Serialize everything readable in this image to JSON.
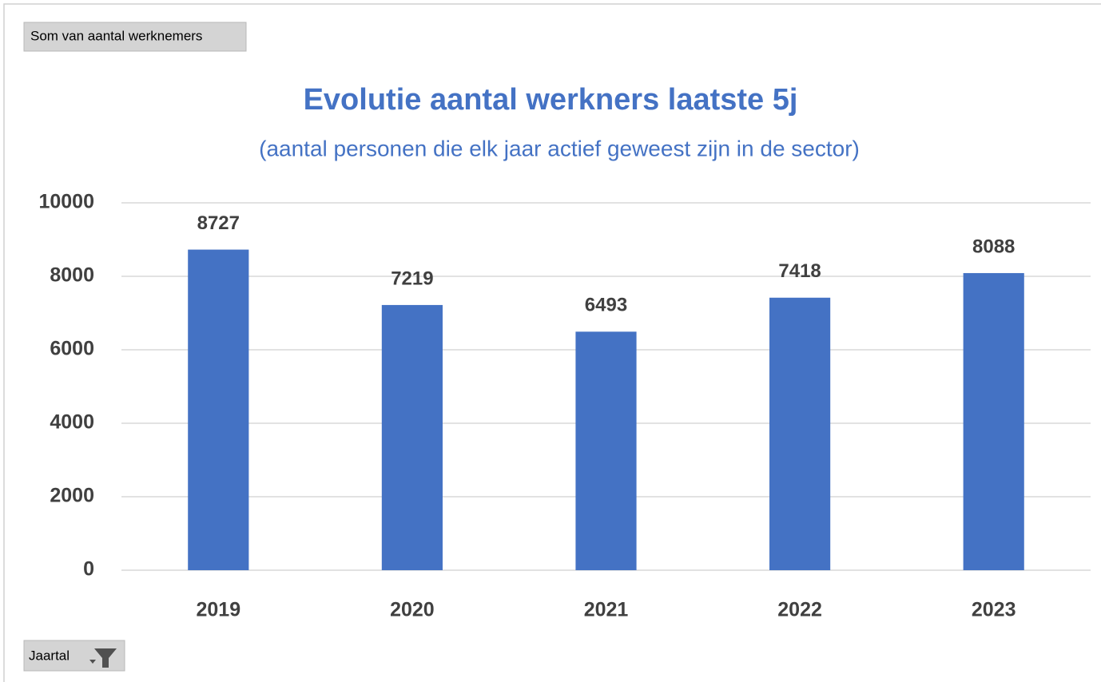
{
  "value_field": "Som van aantal werknemers",
  "axis_field": "Jaartal",
  "chart_data": {
    "type": "bar",
    "title": "Evolutie aantal werkners laatste 5j",
    "subtitle": "(aantal personen die elk jaar actief geweest zijn in de sector)",
    "categories": [
      "2019",
      "2020",
      "2021",
      "2022",
      "2023"
    ],
    "values": [
      8727,
      7219,
      6493,
      7418,
      8088
    ],
    "color": "#4472c4",
    "ylim": [
      0,
      10000
    ],
    "yticks": [
      0,
      2000,
      4000,
      6000,
      8000,
      10000
    ],
    "grid": true
  }
}
